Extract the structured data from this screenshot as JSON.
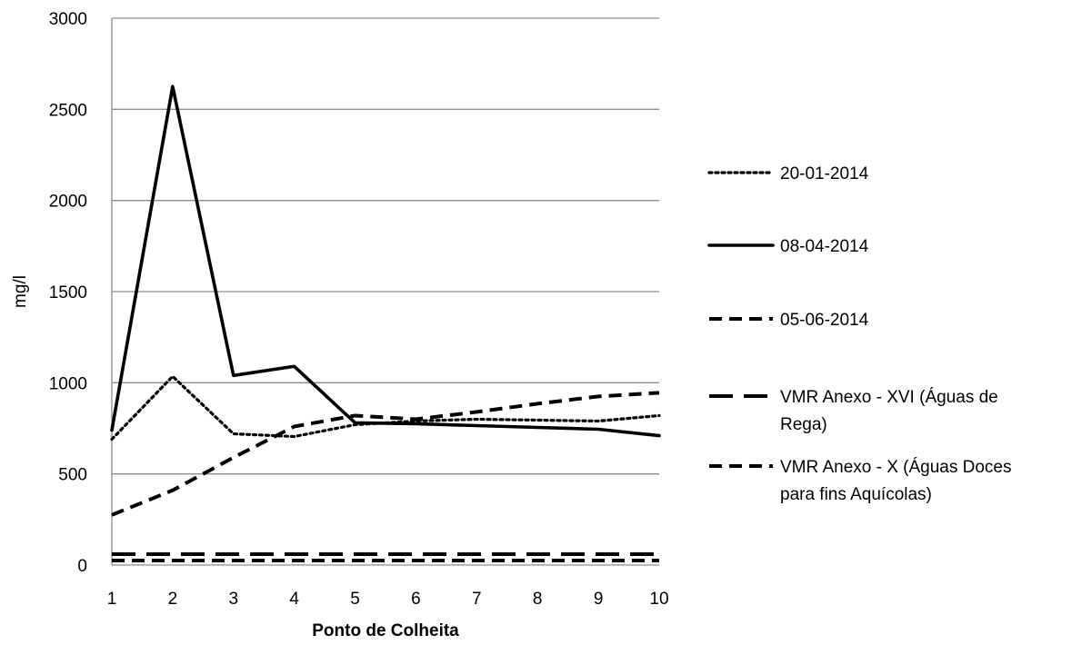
{
  "chart_data": {
    "type": "line",
    "title": "",
    "xlabel": "Ponto de Colheita",
    "ylabel": "mg/l",
    "x": [
      1,
      2,
      3,
      4,
      5,
      6,
      7,
      8,
      9,
      10
    ],
    "ylim": [
      0,
      3000
    ],
    "yticks": [
      0,
      500,
      1000,
      1500,
      2000,
      2500,
      3000
    ],
    "grid": "horizontal",
    "legend_position": "right",
    "series": [
      {
        "name": "20-01-2014",
        "style": "dotted",
        "values": [
          690,
          1035,
          720,
          705,
          770,
          790,
          800,
          795,
          790,
          820
        ]
      },
      {
        "name": "08-04-2014",
        "style": "solid",
        "values": [
          740,
          2625,
          1040,
          1090,
          780,
          775,
          765,
          755,
          745,
          710
        ]
      },
      {
        "name": "05-06-2014",
        "style": "dashed",
        "values": [
          275,
          410,
          590,
          760,
          820,
          800,
          840,
          885,
          925,
          945
        ]
      },
      {
        "name": "VMR Anexo - XVI (Águas de Rega)",
        "legend_lines": [
          "VMR Anexo - XVI (Águas de",
          "Rega)"
        ],
        "style": "long-dash",
        "values": [
          60,
          60,
          60,
          60,
          60,
          60,
          60,
          60,
          60,
          60
        ]
      },
      {
        "name": "VMR Anexo - X (Águas Doces para fins Aquícolas)",
        "legend_lines": [
          "VMR Anexo - X (Águas Doces",
          "para fins Aquícolas)"
        ],
        "style": "dashed",
        "values": [
          25,
          25,
          25,
          25,
          25,
          25,
          25,
          25,
          25,
          25
        ]
      }
    ],
    "colors": {
      "line": "#000000",
      "grid": "#8c8c8c",
      "axis": "#8c8c8c"
    }
  }
}
